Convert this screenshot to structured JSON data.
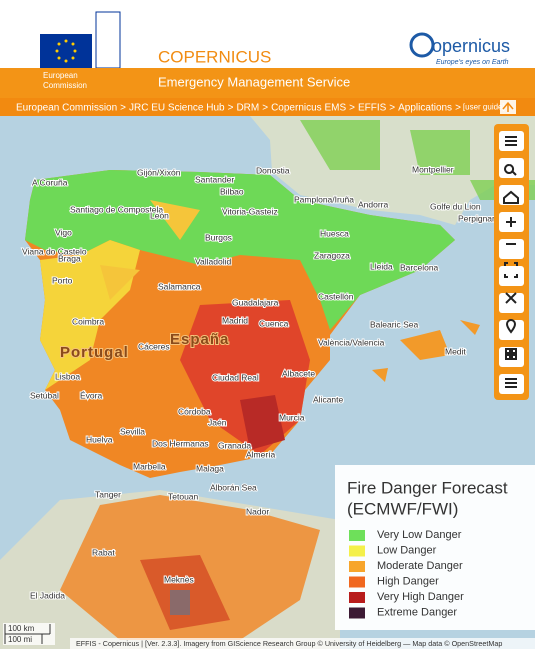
{
  "header": {
    "org_line1": "European",
    "org_line2": "Commission",
    "title": "COPERNICUS",
    "subtitle": "Emergency Management Service",
    "logo_text": "opernicus",
    "logo_tagline": "Europe's eyes on Earth"
  },
  "breadcrumb": {
    "items": [
      "European Commission",
      "JRC EU Science Hub",
      "DRM",
      "Copernicus EMS",
      "EFFIS",
      "Applications"
    ],
    "separator": ">",
    "guide": "[user guide]"
  },
  "map_labels": [
    "A Coruña",
    "Gijón/Xixón",
    "Santander",
    "Donostia",
    "Bilbao",
    "Vitoria-Gasteiz",
    "Pamplona/Iruña",
    "Santiago de Compostela",
    "Vigo",
    "Viana do Castelo",
    "Braga",
    "Porto",
    "León",
    "Burgos",
    "Valladolid",
    "Salamanca",
    "Huesca",
    "Zaragoza",
    "Lleida",
    "Andorra",
    "Barcelona",
    "Perpignan",
    "Montpellier",
    "Golfe du Lion",
    "Guadalajara",
    "Madrid",
    "Cuenca",
    "Castellón",
    "València/Valencia",
    "Balearic Sea",
    "Portugal",
    "España",
    "Coimbra",
    "Cáceres",
    "Lisboa",
    "Setúbal",
    "Évora",
    "Ciudad Real",
    "Albacete",
    "Córdoba",
    "Jaén",
    "Alicante",
    "Murcia",
    "Sevilla",
    "Huelva",
    "Dos Hermanas",
    "Granada",
    "Almería",
    "Marbella",
    "Malaga",
    "Alborán Sea",
    "Tanger",
    "Tetouan",
    "Nador",
    "Rabat",
    "Meknès",
    "El Jadida",
    "Medit"
  ],
  "legend": {
    "title_line1": "Fire Danger Forecast",
    "title_line2": "(ECMWF/FWI)",
    "items": [
      {
        "label": "Very Low Danger",
        "color": "#6ee05a"
      },
      {
        "label": "Low Danger",
        "color": "#f4f04a"
      },
      {
        "label": "Moderate Danger",
        "color": "#f7a52b"
      },
      {
        "label": "High Danger",
        "color": "#f0671f"
      },
      {
        "label": "Very High Danger",
        "color": "#b81c1c"
      },
      {
        "label": "Extreme Danger",
        "color": "#3c1a34"
      }
    ]
  },
  "scale": [
    "100 km",
    "100 mi"
  ],
  "attribution": "EFFIS - Copernicus | [Ver. 2.3.3]. Imagery from GIScience Research Group © University of Heidelberg — Map data © OpenStreetMap"
}
